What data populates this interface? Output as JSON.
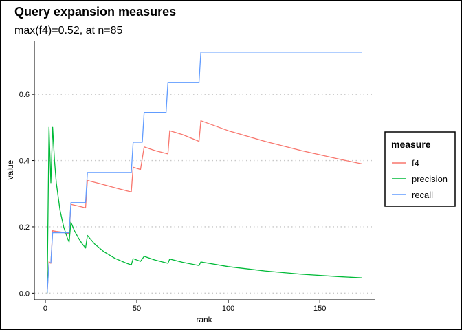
{
  "chart_data": {
    "type": "line",
    "title": "Query expansion measures",
    "subtitle": "max(f4)=0.52, at n=85",
    "xlabel": "rank",
    "ylabel": "value",
    "xlim": [
      -6,
      180
    ],
    "ylim": [
      -0.02,
      0.76
    ],
    "xticks": [
      0,
      50,
      100,
      150
    ],
    "yticks": [
      0.0,
      0.2,
      0.4,
      0.6
    ],
    "ytick_labels": [
      "0.0",
      "0.2",
      "0.4",
      "0.6"
    ],
    "grid": "horizontal-dotted",
    "legend": {
      "title": "measure",
      "position": "right"
    },
    "series": [
      {
        "name": "f4",
        "color": "#F8766D",
        "x": [
          1,
          2,
          3,
          4,
          6,
          9,
          12,
          13,
          14,
          17,
          20,
          22,
          23,
          30,
          40,
          47,
          48,
          52,
          54,
          60,
          67,
          68,
          75,
          84,
          85,
          100,
          120,
          140,
          160,
          173
        ],
        "y": [
          0.0,
          0.095,
          0.09,
          0.188,
          0.186,
          0.184,
          0.18,
          0.18,
          0.268,
          0.264,
          0.26,
          0.257,
          0.34,
          0.33,
          0.315,
          0.305,
          0.38,
          0.373,
          0.441,
          0.43,
          0.42,
          0.49,
          0.478,
          0.458,
          0.52,
          0.49,
          0.458,
          0.43,
          0.405,
          0.39
        ]
      },
      {
        "name": "precision",
        "color": "#00BA38",
        "x": [
          1,
          2,
          3,
          4,
          5,
          6,
          8,
          10,
          12,
          13,
          14,
          16,
          18,
          20,
          22,
          23,
          27,
          32,
          38,
          44,
          47,
          48,
          52,
          54,
          60,
          67,
          68,
          75,
          84,
          85,
          100,
          120,
          140,
          160,
          173
        ],
        "y": [
          0.0,
          0.5,
          0.333,
          0.5,
          0.4,
          0.333,
          0.25,
          0.2,
          0.167,
          0.154,
          0.214,
          0.1875,
          0.167,
          0.15,
          0.136,
          0.174,
          0.148,
          0.125,
          0.105,
          0.091,
          0.085,
          0.104,
          0.096,
          0.111,
          0.1,
          0.09,
          0.103,
          0.093,
          0.083,
          0.094,
          0.08,
          0.067,
          0.057,
          0.05,
          0.046
        ]
      },
      {
        "name": "recall",
        "color": "#619CFF",
        "x": [
          1,
          2,
          3,
          4,
          13,
          14,
          22,
          23,
          47,
          48,
          53,
          54,
          66,
          67,
          84,
          85,
          173
        ],
        "y": [
          0.0,
          0.091,
          0.091,
          0.182,
          0.182,
          0.273,
          0.273,
          0.364,
          0.364,
          0.455,
          0.455,
          0.545,
          0.545,
          0.636,
          0.636,
          0.727,
          0.727
        ],
        "step": true
      }
    ]
  }
}
